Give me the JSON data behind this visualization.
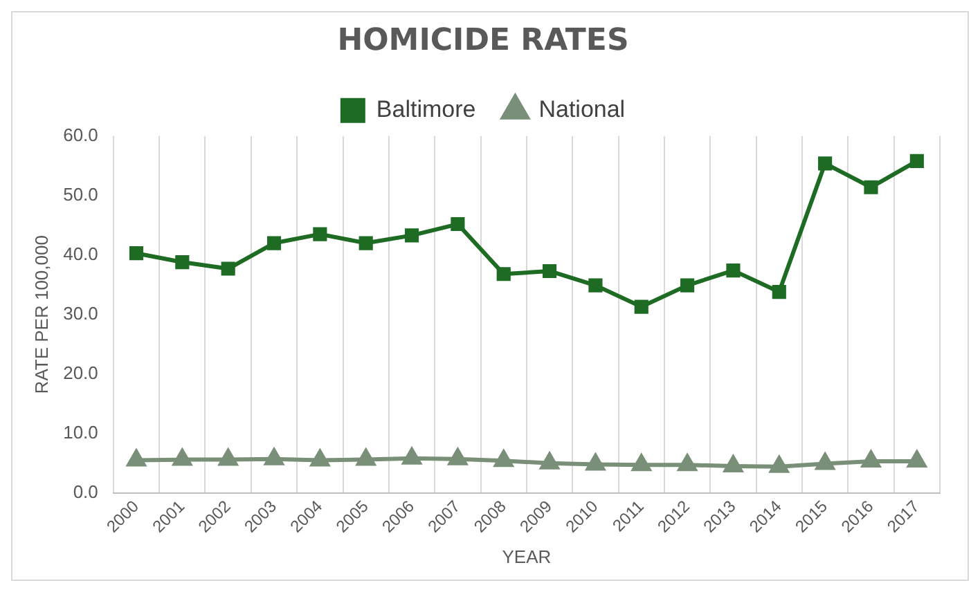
{
  "chart_data": {
    "type": "line",
    "title": "HOMICIDE RATES",
    "xlabel": "YEAR",
    "ylabel": "RATE PER 100,000",
    "categories": [
      "2000",
      "2001",
      "2002",
      "2003",
      "2004",
      "2005",
      "2006",
      "2007",
      "2008",
      "2009",
      "2010",
      "2011",
      "2012",
      "2013",
      "2014",
      "2015",
      "2016",
      "2017"
    ],
    "series": [
      {
        "name": "Baltimore",
        "color": "#1e6b24",
        "marker": "square",
        "values": [
          40.3,
          38.8,
          37.7,
          42.0,
          43.5,
          42.0,
          43.3,
          45.2,
          36.8,
          37.3,
          34.9,
          31.3,
          34.9,
          37.4,
          33.8,
          55.4,
          51.4,
          55.8
        ]
      },
      {
        "name": "National",
        "color": "#7a8f78",
        "marker": "triangle",
        "values": [
          5.5,
          5.6,
          5.6,
          5.7,
          5.5,
          5.6,
          5.8,
          5.7,
          5.4,
          5.0,
          4.8,
          4.7,
          4.7,
          4.5,
          4.4,
          4.9,
          5.3,
          5.3
        ]
      }
    ],
    "ylim": [
      0,
      60
    ],
    "yticks": [
      {
        "value": 0,
        "label": "0.0"
      },
      {
        "value": 10,
        "label": "10.0"
      },
      {
        "value": 20,
        "label": "20.0"
      },
      {
        "value": 30,
        "label": "30.0"
      },
      {
        "value": 40,
        "label": "40.0"
      },
      {
        "value": 50,
        "label": "50.0"
      },
      {
        "value": 60,
        "label": "60.0"
      }
    ],
    "grid": "x",
    "legend": "top",
    "line_style": "solid"
  }
}
